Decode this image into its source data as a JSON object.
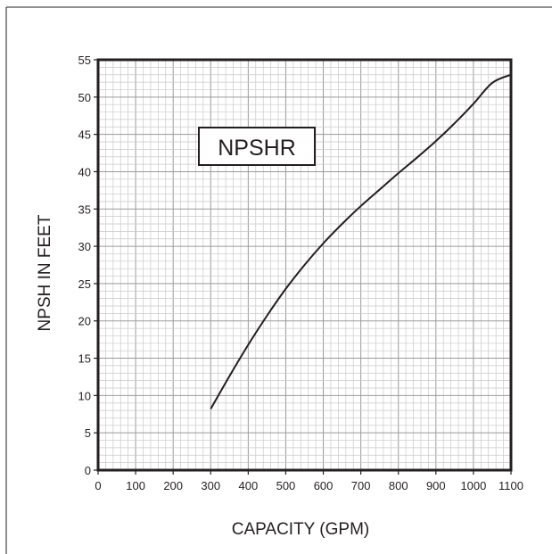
{
  "chart_data": {
    "type": "line",
    "title": "NPSHR",
    "xlabel": "CAPACITY (GPM)",
    "ylabel": "NPSH IN FEET",
    "xlim": [
      0,
      1100
    ],
    "ylim": [
      0,
      55
    ],
    "x_ticks": [
      0,
      100,
      200,
      300,
      400,
      500,
      600,
      700,
      800,
      900,
      1000,
      1100
    ],
    "y_ticks": [
      0,
      5,
      10,
      15,
      20,
      25,
      30,
      35,
      40,
      45,
      50,
      55
    ],
    "minor_grid_x": 20,
    "minor_grid_y": 1,
    "grid": true,
    "series": [
      {
        "x": [
          300,
          350,
          400,
          450,
          500,
          550,
          600,
          650,
          700,
          750,
          800,
          850,
          900,
          950,
          1000,
          1050,
          1100
        ],
        "y": [
          8.2,
          12.6,
          16.8,
          20.7,
          24.3,
          27.5,
          30.4,
          33.0,
          35.4,
          37.6,
          39.8,
          41.9,
          44.1,
          46.5,
          49.1,
          51.9,
          53.0
        ]
      }
    ],
    "colors": {
      "line": "#231f20",
      "axes": "#231f20",
      "minor_grid": "#c9c9c9",
      "major_grid": "#9a9a9a"
    }
  }
}
